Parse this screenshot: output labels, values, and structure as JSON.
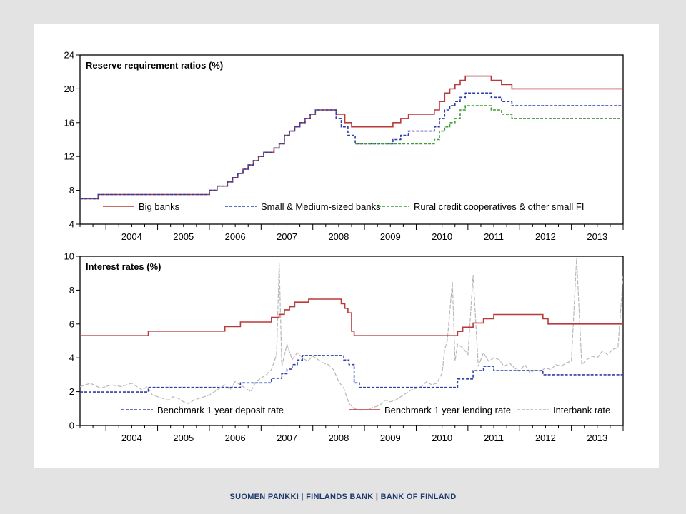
{
  "footer": "SUOMEN PANKKI | FINLANDS BANK | BANK OF FINLAND",
  "colors": {
    "big": "#b83a3a",
    "small": "#2e3fa8",
    "rural": "#3f9a3a",
    "deposit": "#2e3fa8",
    "lending": "#b83a3a",
    "interbank": "#b8b8b8"
  },
  "chart_data": [
    {
      "type": "line",
      "title": "Reserve requirement ratios (%)",
      "xlabel": "",
      "ylabel": "",
      "xlim": [
        2003.5,
        2014.0
      ],
      "ylim": [
        4,
        24
      ],
      "yticks": [
        4,
        8,
        12,
        16,
        20,
        24
      ],
      "x_tick_labels": [
        "2004",
        "2005",
        "2006",
        "2007",
        "2008",
        "2009",
        "2010",
        "2011",
        "2012",
        "2013"
      ],
      "legend_position": "bottom-inside",
      "grid": false,
      "series": [
        {
          "name": "Big banks",
          "style": "solid",
          "color": "#b83a3a",
          "x": [
            2003.5,
            2003.85,
            2003.85,
            2006.0,
            2006.0,
            2006.15,
            2006.15,
            2006.35,
            2006.35,
            2006.45,
            2006.45,
            2006.55,
            2006.55,
            2006.65,
            2006.65,
            2006.75,
            2006.75,
            2006.85,
            2006.85,
            2006.95,
            2006.95,
            2007.05,
            2007.05,
            2007.25,
            2007.25,
            2007.35,
            2007.35,
            2007.45,
            2007.45,
            2007.55,
            2007.55,
            2007.65,
            2007.65,
            2007.75,
            2007.75,
            2007.85,
            2007.85,
            2007.95,
            2007.95,
            2008.05,
            2008.05,
            2008.15,
            2008.15,
            2008.25,
            2008.25,
            2008.45,
            2008.45,
            2008.62,
            2008.62,
            2008.75,
            2008.75,
            2008.9,
            2008.9,
            2009.55,
            2009.55,
            2009.7,
            2009.7,
            2009.85,
            2009.85,
            2009.95,
            2009.95,
            2010.35,
            2010.35,
            2010.45,
            2010.45,
            2010.55,
            2010.55,
            2010.65,
            2010.65,
            2010.75,
            2010.75,
            2010.85,
            2010.85,
            2010.95,
            2010.95,
            2011.45,
            2011.45,
            2011.65,
            2011.65,
            2011.85,
            2011.85,
            2011.95,
            2011.95,
            2014.0
          ],
          "y": [
            7.0,
            7.0,
            7.5,
            7.5,
            8.0,
            8.0,
            8.5,
            8.5,
            9.0,
            9.0,
            9.5,
            9.5,
            10.0,
            10.0,
            10.5,
            10.5,
            11.0,
            11.0,
            11.5,
            11.5,
            12.0,
            12.0,
            12.5,
            12.5,
            13.0,
            13.0,
            13.5,
            13.5,
            14.5,
            14.5,
            15.0,
            15.0,
            15.5,
            15.5,
            16.0,
            16.0,
            16.5,
            16.5,
            17.0,
            17.0,
            17.5,
            17.5,
            17.5,
            17.5,
            17.5,
            17.5,
            17.0,
            17.0,
            16.0,
            16.0,
            15.5,
            15.5,
            15.5,
            15.5,
            16.0,
            16.0,
            16.5,
            16.5,
            17.0,
            17.0,
            17.0,
            17.0,
            17.5,
            17.5,
            18.5,
            18.5,
            19.5,
            19.5,
            20.0,
            20.0,
            20.5,
            20.5,
            21.0,
            21.0,
            21.5,
            21.5,
            21.0,
            21.0,
            20.5,
            20.5,
            20.0,
            20.0,
            20.0,
            20.0
          ]
        },
        {
          "name": "Small & Medium-sized banks",
          "style": "dashed",
          "color": "#2e3fa8",
          "x": [
            2003.5,
            2003.85,
            2003.85,
            2006.0,
            2006.0,
            2006.15,
            2006.15,
            2006.35,
            2006.35,
            2006.45,
            2006.45,
            2006.55,
            2006.55,
            2006.65,
            2006.65,
            2006.75,
            2006.75,
            2006.85,
            2006.85,
            2006.95,
            2006.95,
            2007.05,
            2007.05,
            2007.25,
            2007.25,
            2007.35,
            2007.35,
            2007.45,
            2007.45,
            2007.55,
            2007.55,
            2007.65,
            2007.65,
            2007.75,
            2007.75,
            2007.85,
            2007.85,
            2007.95,
            2007.95,
            2008.05,
            2008.05,
            2008.15,
            2008.15,
            2008.25,
            2008.25,
            2008.45,
            2008.45,
            2008.55,
            2008.55,
            2008.68,
            2008.68,
            2008.82,
            2008.82,
            2009.55,
            2009.55,
            2009.7,
            2009.7,
            2009.85,
            2009.85,
            2010.35,
            2010.35,
            2010.45,
            2010.45,
            2010.55,
            2010.55,
            2010.65,
            2010.65,
            2010.75,
            2010.75,
            2010.85,
            2010.85,
            2010.95,
            2010.95,
            2011.45,
            2011.45,
            2011.65,
            2011.65,
            2011.85,
            2011.85,
            2011.95,
            2011.95,
            2014.0
          ],
          "y": [
            7.0,
            7.0,
            7.5,
            7.5,
            8.0,
            8.0,
            8.5,
            8.5,
            9.0,
            9.0,
            9.5,
            9.5,
            10.0,
            10.0,
            10.5,
            10.5,
            11.0,
            11.0,
            11.5,
            11.5,
            12.0,
            12.0,
            12.5,
            12.5,
            13.0,
            13.0,
            13.5,
            13.5,
            14.5,
            14.5,
            15.0,
            15.0,
            15.5,
            15.5,
            16.0,
            16.0,
            16.5,
            16.5,
            17.0,
            17.0,
            17.5,
            17.5,
            17.5,
            17.5,
            17.5,
            17.5,
            16.5,
            16.5,
            15.5,
            15.5,
            14.5,
            14.5,
            13.5,
            13.5,
            14.0,
            14.0,
            14.5,
            14.5,
            15.0,
            15.0,
            15.5,
            15.5,
            16.5,
            16.5,
            17.5,
            17.5,
            18.0,
            18.0,
            18.5,
            18.5,
            19.0,
            19.0,
            19.5,
            19.5,
            19.0,
            19.0,
            18.5,
            18.5,
            18.0,
            18.0,
            18.0,
            18.0
          ]
        },
        {
          "name": "Rural credit cooperatives & other small FI",
          "style": "dashed",
          "color": "#3f9a3a",
          "x": [
            2008.82,
            2010.35,
            2010.35,
            2010.45,
            2010.45,
            2010.55,
            2010.55,
            2010.65,
            2010.65,
            2010.75,
            2010.75,
            2010.85,
            2010.85,
            2010.95,
            2010.95,
            2011.45,
            2011.45,
            2011.65,
            2011.65,
            2011.85,
            2011.85,
            2011.95,
            2011.95,
            2014.0
          ],
          "y": [
            13.5,
            13.5,
            14.0,
            14.0,
            15.0,
            15.0,
            15.5,
            15.5,
            16.0,
            16.0,
            16.5,
            16.5,
            17.5,
            17.5,
            18.0,
            18.0,
            17.5,
            17.5,
            17.0,
            17.0,
            16.5,
            16.5,
            16.5,
            16.5
          ]
        }
      ]
    },
    {
      "type": "line",
      "title": "Interest rates (%)",
      "xlabel": "",
      "ylabel": "",
      "xlim": [
        2003.5,
        2014.0
      ],
      "ylim": [
        0,
        10
      ],
      "yticks": [
        0,
        2,
        4,
        6,
        8,
        10
      ],
      "x_tick_labels": [
        "2004",
        "2005",
        "2006",
        "2007",
        "2008",
        "2009",
        "2010",
        "2011",
        "2012",
        "2013"
      ],
      "legend_position": "bottom-inside",
      "grid": false,
      "series": [
        {
          "name": "Benchmark 1 year deposit rate",
          "style": "dashed",
          "color": "#2e3fa8",
          "x": [
            2003.5,
            2004.82,
            2004.82,
            2006.6,
            2006.6,
            2007.2,
            2007.2,
            2007.4,
            2007.4,
            2007.5,
            2007.5,
            2007.6,
            2007.6,
            2007.7,
            2007.7,
            2007.8,
            2007.8,
            2008.6,
            2008.6,
            2008.7,
            2008.7,
            2008.8,
            2008.8,
            2008.9,
            2008.9,
            2010.8,
            2010.8,
            2011.1,
            2011.1,
            2011.3,
            2011.3,
            2011.5,
            2011.5,
            2012.45,
            2012.45,
            2012.55,
            2012.55,
            2014.0
          ],
          "y": [
            1.98,
            1.98,
            2.25,
            2.25,
            2.52,
            2.52,
            2.79,
            2.79,
            3.06,
            3.06,
            3.33,
            3.33,
            3.6,
            3.6,
            3.87,
            3.87,
            4.14,
            4.14,
            3.87,
            3.87,
            3.6,
            3.6,
            2.52,
            2.52,
            2.25,
            2.25,
            2.75,
            2.75,
            3.25,
            3.25,
            3.5,
            3.5,
            3.25,
            3.25,
            3.0,
            3.0,
            3.0,
            3.0
          ]
        },
        {
          "name": "Benchmark 1 year lending rate",
          "style": "solid",
          "color": "#b83a3a",
          "x": [
            2003.5,
            2004.82,
            2004.82,
            2006.3,
            2006.3,
            2006.6,
            2006.6,
            2007.2,
            2007.2,
            2007.35,
            2007.35,
            2007.45,
            2007.45,
            2007.55,
            2007.55,
            2007.65,
            2007.65,
            2007.72,
            2007.72,
            2007.8,
            2007.8,
            2007.92,
            2007.92,
            2008.55,
            2008.55,
            2008.62,
            2008.62,
            2008.68,
            2008.68,
            2008.75,
            2008.75,
            2008.8,
            2008.8,
            2010.8,
            2010.8,
            2010.9,
            2010.9,
            2011.1,
            2011.1,
            2011.3,
            2011.3,
            2011.5,
            2011.5,
            2012.45,
            2012.45,
            2012.55,
            2012.55,
            2014.0
          ],
          "y": [
            5.31,
            5.31,
            5.58,
            5.58,
            5.85,
            5.85,
            6.12,
            6.12,
            6.39,
            6.39,
            6.57,
            6.57,
            6.84,
            6.84,
            7.02,
            7.02,
            7.29,
            7.29,
            7.29,
            7.29,
            7.29,
            7.29,
            7.47,
            7.47,
            7.2,
            7.2,
            6.93,
            6.93,
            6.66,
            6.66,
            5.58,
            5.58,
            5.31,
            5.31,
            5.56,
            5.56,
            5.81,
            5.81,
            6.06,
            6.06,
            6.31,
            6.31,
            6.56,
            6.56,
            6.31,
            6.31,
            6.0,
            6.0
          ]
        },
        {
          "name": "Interbank rate",
          "style": "dashed",
          "color": "#b8b8b8",
          "x": [
            2003.5,
            2003.7,
            2003.9,
            2004.1,
            2004.3,
            2004.5,
            2004.7,
            2004.8,
            2004.9,
            2005.0,
            2005.1,
            2005.2,
            2005.3,
            2005.4,
            2005.5,
            2005.6,
            2005.7,
            2005.8,
            2005.9,
            2006.0,
            2006.1,
            2006.2,
            2006.3,
            2006.4,
            2006.5,
            2006.6,
            2006.7,
            2006.8,
            2006.9,
            2007.0,
            2007.1,
            2007.2,
            2007.3,
            2007.35,
            2007.4,
            2007.5,
            2007.6,
            2007.7,
            2007.8,
            2007.9,
            2008.0,
            2008.1,
            2008.2,
            2008.3,
            2008.4,
            2008.5,
            2008.6,
            2008.7,
            2008.8,
            2008.9,
            2009.0,
            2009.1,
            2009.2,
            2009.3,
            2009.4,
            2009.5,
            2009.6,
            2009.7,
            2009.8,
            2009.9,
            2010.0,
            2010.1,
            2010.2,
            2010.3,
            2010.4,
            2010.5,
            2010.55,
            2010.6,
            2010.7,
            2010.75,
            2010.8,
            2010.9,
            2011.0,
            2011.1,
            2011.2,
            2011.3,
            2011.4,
            2011.5,
            2011.6,
            2011.7,
            2011.8,
            2011.9,
            2012.0,
            2012.1,
            2012.2,
            2012.3,
            2012.4,
            2012.5,
            2012.6,
            2012.7,
            2012.8,
            2012.9,
            2013.0,
            2013.1,
            2013.2,
            2013.3,
            2013.4,
            2013.5,
            2013.6,
            2013.7,
            2013.8,
            2013.9,
            2014.0
          ],
          "y": [
            2.3,
            2.5,
            2.2,
            2.4,
            2.3,
            2.5,
            2.1,
            2.3,
            1.8,
            1.7,
            1.6,
            1.5,
            1.7,
            1.6,
            1.4,
            1.3,
            1.5,
            1.6,
            1.7,
            1.8,
            2.0,
            2.2,
            2.4,
            2.1,
            2.6,
            2.4,
            2.2,
            2.0,
            2.6,
            2.8,
            3.0,
            3.3,
            4.2,
            9.6,
            3.5,
            4.8,
            3.9,
            4.3,
            4.0,
            3.8,
            4.1,
            3.9,
            3.7,
            3.6,
            3.3,
            2.6,
            2.2,
            1.3,
            1.0,
            0.9,
            0.9,
            1.0,
            1.1,
            1.2,
            1.5,
            1.4,
            1.5,
            1.7,
            1.9,
            2.1,
            2.2,
            2.3,
            2.6,
            2.4,
            2.5,
            3.1,
            4.5,
            5.0,
            8.5,
            3.8,
            4.8,
            4.6,
            4.2,
            8.9,
            3.5,
            4.3,
            3.8,
            4.0,
            3.9,
            3.5,
            3.7,
            3.4,
            3.2,
            3.6,
            3.1,
            3.3,
            3.2,
            3.4,
            3.3,
            3.6,
            3.5,
            3.7,
            3.8,
            9.9,
            3.6,
            3.9,
            4.1,
            4.0,
            4.4,
            4.2,
            4.5,
            4.6,
            8.8
          ]
        }
      ]
    }
  ]
}
